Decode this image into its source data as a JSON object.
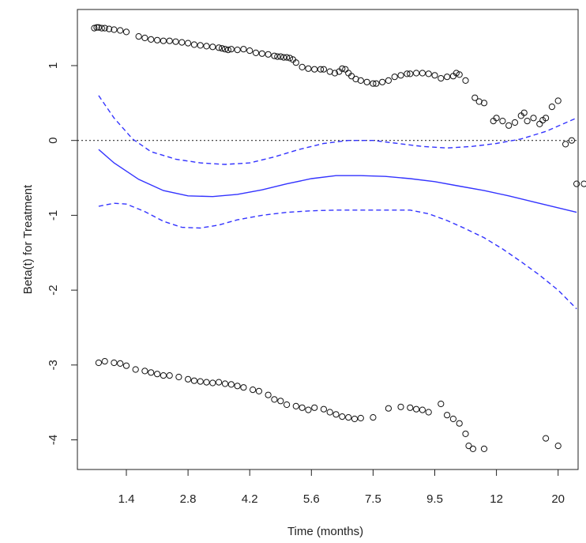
{
  "chart_data": {
    "type": "scatter",
    "title": "",
    "xlabel": "Time (months)",
    "ylabel": "Beta(t) for Treatment",
    "x_tick_labels": [
      "1.4",
      "2.8",
      "4.2",
      "5.6",
      "7.5",
      "9.5",
      "12",
      "20"
    ],
    "y_ticks": [
      1,
      0,
      -1,
      -2,
      -3,
      -4
    ],
    "y_tick_labels": [
      "1",
      "0",
      "-1",
      "-2",
      "-3",
      "-4"
    ],
    "ylim": [
      -4.45,
      1.75
    ],
    "x_axis_note": "transformed (rank-based) time scale; positions given in tick units 0-7 for 1.4 to 20",
    "xlim_ticks": [
      -0.58,
      7.33
    ],
    "reference_line": {
      "y": 0,
      "style": "dotted",
      "color": "#333333"
    },
    "series": [
      {
        "role": "smooth_fit",
        "style": "solid",
        "color": "#3333ff",
        "points": [
          [
            -0.45,
            -0.12
          ],
          [
            -0.2,
            -0.3
          ],
          [
            0.2,
            -0.52
          ],
          [
            0.6,
            -0.67
          ],
          [
            1.0,
            -0.74
          ],
          [
            1.4,
            -0.75
          ],
          [
            1.8,
            -0.72
          ],
          [
            2.2,
            -0.66
          ],
          [
            2.6,
            -0.58
          ],
          [
            3.0,
            -0.51
          ],
          [
            3.4,
            -0.47
          ],
          [
            3.8,
            -0.47
          ],
          [
            4.2,
            -0.48
          ],
          [
            4.6,
            -0.51
          ],
          [
            5.0,
            -0.55
          ],
          [
            5.4,
            -0.61
          ],
          [
            5.8,
            -0.67
          ],
          [
            6.2,
            -0.74
          ],
          [
            6.6,
            -0.82
          ],
          [
            7.0,
            -0.9
          ],
          [
            7.3,
            -0.96
          ]
        ]
      },
      {
        "role": "upper_band",
        "style": "dashed",
        "color": "#3333ff",
        "points": [
          [
            -0.45,
            0.6
          ],
          [
            -0.2,
            0.3
          ],
          [
            0.1,
            0.02
          ],
          [
            0.4,
            -0.15
          ],
          [
            0.8,
            -0.25
          ],
          [
            1.2,
            -0.3
          ],
          [
            1.6,
            -0.32
          ],
          [
            2.0,
            -0.3
          ],
          [
            2.4,
            -0.22
          ],
          [
            2.8,
            -0.12
          ],
          [
            3.2,
            -0.04
          ],
          [
            3.6,
            0.0
          ],
          [
            4.0,
            0.0
          ],
          [
            4.4,
            -0.04
          ],
          [
            4.8,
            -0.08
          ],
          [
            5.2,
            -0.1
          ],
          [
            5.6,
            -0.08
          ],
          [
            6.0,
            -0.04
          ],
          [
            6.4,
            0.02
          ],
          [
            6.8,
            0.12
          ],
          [
            7.3,
            0.3
          ]
        ]
      },
      {
        "role": "lower_band",
        "style": "dashed",
        "color": "#3333ff",
        "points": [
          [
            -0.45,
            -0.88
          ],
          [
            -0.2,
            -0.84
          ],
          [
            0.0,
            -0.85
          ],
          [
            0.3,
            -0.95
          ],
          [
            0.6,
            -1.08
          ],
          [
            0.9,
            -1.16
          ],
          [
            1.2,
            -1.17
          ],
          [
            1.5,
            -1.13
          ],
          [
            1.8,
            -1.06
          ],
          [
            2.2,
            -1.0
          ],
          [
            2.6,
            -0.96
          ],
          [
            3.0,
            -0.94
          ],
          [
            3.4,
            -0.93
          ],
          [
            3.8,
            -0.93
          ],
          [
            4.2,
            -0.93
          ],
          [
            4.6,
            -0.93
          ],
          [
            4.9,
            -0.98
          ],
          [
            5.2,
            -1.07
          ],
          [
            5.5,
            -1.18
          ],
          [
            5.8,
            -1.3
          ],
          [
            6.1,
            -1.45
          ],
          [
            6.4,
            -1.62
          ],
          [
            6.7,
            -1.8
          ],
          [
            7.0,
            -2.0
          ],
          [
            7.3,
            -2.25
          ]
        ]
      },
      {
        "role": "residuals_upper",
        "style": "open-circle",
        "color": "#111111",
        "points": [
          [
            -0.52,
            1.5
          ],
          [
            -0.48,
            1.51
          ],
          [
            -0.45,
            1.51
          ],
          [
            -0.4,
            1.5
          ],
          [
            -0.35,
            1.5
          ],
          [
            -0.28,
            1.49
          ],
          [
            -0.2,
            1.48
          ],
          [
            -0.1,
            1.47
          ],
          [
            0.0,
            1.45
          ],
          [
            0.2,
            1.39
          ],
          [
            0.3,
            1.37
          ],
          [
            0.4,
            1.35
          ],
          [
            0.5,
            1.34
          ],
          [
            0.6,
            1.33
          ],
          [
            0.7,
            1.33
          ],
          [
            0.8,
            1.32
          ],
          [
            0.9,
            1.31
          ],
          [
            1.0,
            1.3
          ],
          [
            1.1,
            1.28
          ],
          [
            1.2,
            1.27
          ],
          [
            1.3,
            1.26
          ],
          [
            1.4,
            1.25
          ],
          [
            1.5,
            1.24
          ],
          [
            1.55,
            1.23
          ],
          [
            1.6,
            1.22
          ],
          [
            1.65,
            1.21
          ],
          [
            1.7,
            1.22
          ],
          [
            1.8,
            1.21
          ],
          [
            1.9,
            1.22
          ],
          [
            2.0,
            1.2
          ],
          [
            2.1,
            1.17
          ],
          [
            2.2,
            1.16
          ],
          [
            2.3,
            1.15
          ],
          [
            2.4,
            1.13
          ],
          [
            2.45,
            1.12
          ],
          [
            2.5,
            1.12
          ],
          [
            2.55,
            1.11
          ],
          [
            2.6,
            1.11
          ],
          [
            2.65,
            1.1
          ],
          [
            2.7,
            1.08
          ],
          [
            2.75,
            1.04
          ],
          [
            2.85,
            0.98
          ],
          [
            2.95,
            0.96
          ],
          [
            3.05,
            0.95
          ],
          [
            3.15,
            0.95
          ],
          [
            3.2,
            0.95
          ],
          [
            3.3,
            0.92
          ],
          [
            3.38,
            0.9
          ],
          [
            3.45,
            0.92
          ],
          [
            3.5,
            0.96
          ],
          [
            3.55,
            0.95
          ],
          [
            3.6,
            0.9
          ],
          [
            3.65,
            0.86
          ],
          [
            3.72,
            0.82
          ],
          [
            3.8,
            0.8
          ],
          [
            3.9,
            0.78
          ],
          [
            4.0,
            0.76
          ],
          [
            4.05,
            0.76
          ],
          [
            4.15,
            0.78
          ],
          [
            4.25,
            0.8
          ],
          [
            4.35,
            0.85
          ],
          [
            4.45,
            0.87
          ],
          [
            4.55,
            0.89
          ],
          [
            4.6,
            0.89
          ],
          [
            4.7,
            0.9
          ],
          [
            4.8,
            0.9
          ],
          [
            4.9,
            0.89
          ],
          [
            5.0,
            0.87
          ],
          [
            5.1,
            0.83
          ],
          [
            5.2,
            0.85
          ],
          [
            5.3,
            0.86
          ],
          [
            5.35,
            0.9
          ],
          [
            5.4,
            0.88
          ],
          [
            5.5,
            0.8
          ],
          [
            5.65,
            0.57
          ],
          [
            5.72,
            0.52
          ],
          [
            5.8,
            0.5
          ],
          [
            5.95,
            0.26
          ],
          [
            6.0,
            0.3
          ],
          [
            6.1,
            0.26
          ],
          [
            6.2,
            0.2
          ],
          [
            6.3,
            0.24
          ],
          [
            6.4,
            0.33
          ],
          [
            6.45,
            0.37
          ],
          [
            6.5,
            0.26
          ],
          [
            6.6,
            0.3
          ],
          [
            6.7,
            0.22
          ],
          [
            6.75,
            0.27
          ],
          [
            6.8,
            0.3
          ],
          [
            6.9,
            0.45
          ],
          [
            7.0,
            0.53
          ],
          [
            7.12,
            -0.05
          ],
          [
            7.22,
            0.0
          ],
          [
            7.3,
            -0.58
          ],
          [
            7.42,
            -0.58
          ]
        ]
      },
      {
        "role": "residuals_lower",
        "style": "open-circle",
        "color": "#111111",
        "points": [
          [
            -0.45,
            -2.97
          ],
          [
            -0.35,
            -2.95
          ],
          [
            -0.2,
            -2.97
          ],
          [
            -0.1,
            -2.98
          ],
          [
            0.0,
            -3.01
          ],
          [
            0.15,
            -3.06
          ],
          [
            0.3,
            -3.08
          ],
          [
            0.4,
            -3.1
          ],
          [
            0.5,
            -3.12
          ],
          [
            0.6,
            -3.14
          ],
          [
            0.7,
            -3.14
          ],
          [
            0.85,
            -3.16
          ],
          [
            1.0,
            -3.19
          ],
          [
            1.1,
            -3.21
          ],
          [
            1.2,
            -3.22
          ],
          [
            1.3,
            -3.23
          ],
          [
            1.4,
            -3.24
          ],
          [
            1.5,
            -3.23
          ],
          [
            1.6,
            -3.25
          ],
          [
            1.7,
            -3.26
          ],
          [
            1.8,
            -3.28
          ],
          [
            1.9,
            -3.3
          ],
          [
            2.05,
            -3.33
          ],
          [
            2.15,
            -3.35
          ],
          [
            2.3,
            -3.4
          ],
          [
            2.4,
            -3.46
          ],
          [
            2.5,
            -3.48
          ],
          [
            2.6,
            -3.53
          ],
          [
            2.75,
            -3.55
          ],
          [
            2.85,
            -3.57
          ],
          [
            2.95,
            -3.6
          ],
          [
            3.05,
            -3.57
          ],
          [
            3.2,
            -3.59
          ],
          [
            3.3,
            -3.63
          ],
          [
            3.4,
            -3.66
          ],
          [
            3.5,
            -3.69
          ],
          [
            3.6,
            -3.7
          ],
          [
            3.7,
            -3.72
          ],
          [
            3.8,
            -3.71
          ],
          [
            4.0,
            -3.7
          ],
          [
            4.25,
            -3.58
          ],
          [
            4.45,
            -3.56
          ],
          [
            4.6,
            -3.57
          ],
          [
            4.7,
            -3.59
          ],
          [
            4.8,
            -3.6
          ],
          [
            4.9,
            -3.63
          ],
          [
            5.1,
            -3.52
          ],
          [
            5.2,
            -3.67
          ],
          [
            5.3,
            -3.72
          ],
          [
            5.4,
            -3.78
          ],
          [
            5.5,
            -3.92
          ],
          [
            5.55,
            -4.08
          ],
          [
            5.62,
            -4.12
          ],
          [
            5.8,
            -4.12
          ],
          [
            6.8,
            -3.98
          ],
          [
            7.0,
            -4.08
          ]
        ]
      }
    ]
  }
}
